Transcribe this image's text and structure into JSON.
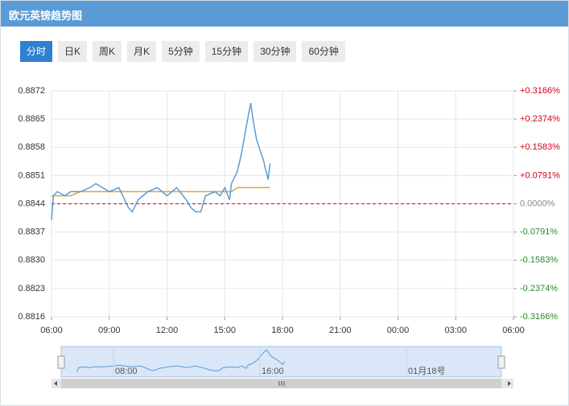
{
  "header": {
    "title": "欧元英镑趋势图"
  },
  "tabs": [
    "分时",
    "日K",
    "周K",
    "月K",
    "5分钟",
    "15分钟",
    "30分钟",
    "60分钟"
  ],
  "active_tab": 0,
  "chart_data": {
    "type": "line",
    "x": [
      6,
      6.1,
      6.3,
      6.7,
      7,
      7.5,
      8,
      8.3,
      9,
      9.5,
      10,
      10.2,
      10.5,
      11,
      11.5,
      12,
      12.5,
      13,
      13.25,
      13.5,
      13.75,
      14,
      14.5,
      14.75,
      15,
      15.25,
      15.35,
      15.65,
      15.85,
      16,
      16.15,
      16.35,
      16.5,
      16.65,
      16.85,
      17,
      17.15,
      17.25,
      17.35
    ],
    "series": [
      {
        "color": "#5b9bd5",
        "values": [
          0.884,
          0.8846,
          0.8847,
          0.8846,
          0.8847,
          0.8847,
          0.8848,
          0.8849,
          0.8847,
          0.8848,
          0.8843,
          0.8842,
          0.8845,
          0.8847,
          0.8848,
          0.8846,
          0.8848,
          0.8845,
          0.8843,
          0.8842,
          0.8842,
          0.8846,
          0.8847,
          0.8846,
          0.8848,
          0.8845,
          0.8849,
          0.8852,
          0.8856,
          0.886,
          0.8864,
          0.8869,
          0.8864,
          0.886,
          0.8857,
          0.8855,
          0.8852,
          0.885,
          0.8854
        ]
      },
      {
        "color": "#d9a441",
        "values": [
          0.8846,
          0.8846,
          0.8846,
          0.8846,
          0.8846,
          0.8847,
          0.8847,
          0.8847,
          0.8847,
          0.8847,
          0.8847,
          0.8847,
          0.8847,
          0.8847,
          0.8847,
          0.8847,
          0.8847,
          0.8847,
          0.8847,
          0.8847,
          0.8847,
          0.8847,
          0.8847,
          0.8847,
          0.8847,
          0.8847,
          0.8847,
          0.8848,
          0.8848,
          0.8848,
          0.8848,
          0.8848,
          0.8848,
          0.8848,
          0.8848,
          0.8848,
          0.8848,
          0.8848,
          0.8848
        ]
      }
    ],
    "baseline": 0.8844,
    "xlim": [
      6,
      30
    ],
    "xticks": [
      {
        "value": 6,
        "label": "06:00"
      },
      {
        "value": 9,
        "label": "09:00"
      },
      {
        "value": 12,
        "label": "12:00"
      },
      {
        "value": 15,
        "label": "15:00"
      },
      {
        "value": 18,
        "label": "18:00"
      },
      {
        "value": 21,
        "label": "21:00"
      },
      {
        "value": 24,
        "label": "00:00"
      },
      {
        "value": 27,
        "label": "03:00"
      },
      {
        "value": 30,
        "label": "06:00"
      }
    ],
    "ylim": [
      0.8816,
      0.8872
    ],
    "yticks": [
      0.8816,
      0.8823,
      {
        "value": 0.883,
        "label": "0.8830"
      },
      0.8837,
      0.8844,
      0.8851,
      0.8858,
      0.8865,
      0.8872
    ],
    "y2lim": [
      -0.3166,
      0.3166
    ],
    "y2ticks": [
      {
        "value": -0.3166,
        "label": "-0.3166%"
      },
      {
        "value": -0.2374,
        "label": "-0.2374%"
      },
      {
        "value": -0.1583,
        "label": "-0.1583%"
      },
      {
        "value": -0.0791,
        "label": "-0.0791%"
      },
      {
        "value": 0,
        "label": "0.0000%"
      },
      {
        "value": 0.0791,
        "label": "+0.0791%"
      },
      {
        "value": 0.1583,
        "label": "+0.1583%"
      },
      {
        "value": 0.2374,
        "label": "+0.2374%"
      },
      {
        "value": 0.3166,
        "label": "+0.3166%"
      }
    ],
    "grid": true
  },
  "navigator": {
    "labels": [
      "08:00",
      "16:00",
      "01月18号"
    ]
  }
}
